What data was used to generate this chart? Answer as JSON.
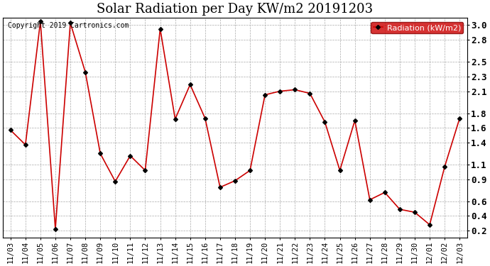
{
  "title": "Solar Radiation per Day KW/m2 20191203",
  "copyright_text": "Copyright 2019 Cartronics.com",
  "legend_label": "Radiation (kW/m2)",
  "dates": [
    "11/03",
    "11/04",
    "11/05",
    "11/06",
    "11/07",
    "11/08",
    "11/09",
    "11/10",
    "11/11",
    "11/12",
    "11/13",
    "11/14",
    "11/15",
    "11/16",
    "11/17",
    "11/18",
    "11/19",
    "11/20",
    "11/21",
    "11/22",
    "11/23",
    "11/24",
    "11/25",
    "11/26",
    "11/27",
    "11/28",
    "11/29",
    "11/30",
    "12/01",
    "12/02",
    "12/03"
  ],
  "values": [
    1.57,
    1.37,
    3.05,
    0.22,
    3.03,
    2.36,
    1.25,
    0.87,
    1.22,
    1.02,
    2.95,
    1.72,
    2.19,
    1.73,
    0.79,
    0.88,
    1.02,
    2.05,
    2.1,
    2.12,
    2.07,
    1.68,
    1.02,
    1.7,
    0.62,
    0.72,
    0.49,
    0.45,
    0.28,
    1.07,
    1.73
  ],
  "line_color": "#cc0000",
  "marker_color": "#000000",
  "legend_bg": "#cc0000",
  "legend_text_color": "#ffffff",
  "ylim": [
    0.1,
    3.1
  ],
  "yticks": [
    0.2,
    0.4,
    0.6,
    0.9,
    1.1,
    1.4,
    1.6,
    1.8,
    2.1,
    2.3,
    2.5,
    2.8,
    3.0
  ],
  "background_color": "#ffffff",
  "grid_color": "#aaaaaa",
  "title_fontsize": 13
}
